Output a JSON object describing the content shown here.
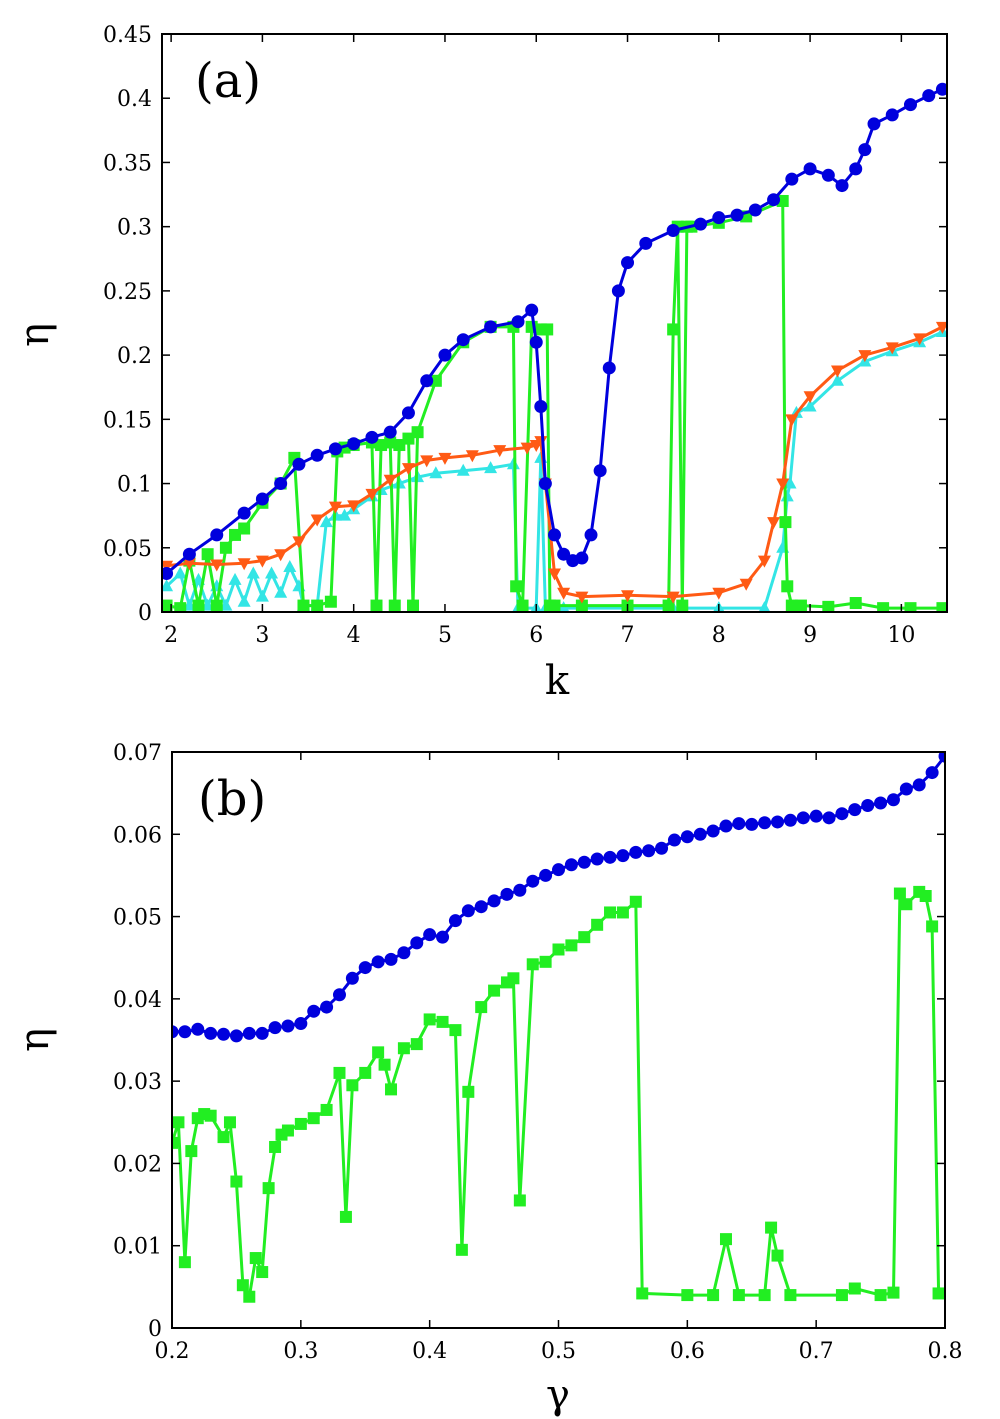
{
  "chart_data": [
    {
      "type": "line",
      "panel_label": "(a)",
      "xlabel": "k",
      "ylabel": "η",
      "xlim": [
        1.9,
        10.5
      ],
      "ylim": [
        0,
        0.45
      ],
      "xticks": [
        2,
        3,
        4,
        5,
        6,
        7,
        8,
        9,
        10
      ],
      "yticks": [
        0,
        0.05,
        0.1,
        0.15,
        0.2,
        0.25,
        0.3,
        0.35,
        0.4,
        0.45
      ],
      "ytick_labels": [
        "0",
        "0.05",
        "0.1",
        "0.15",
        "0.2",
        "0.25",
        "0.3",
        "0.35",
        "0.4",
        "0.45"
      ],
      "series": [
        {
          "name": "blue-circles",
          "color": "#0000dd",
          "marker": "circle",
          "x": [
            1.95,
            2.2,
            2.5,
            2.8,
            3.0,
            3.2,
            3.4,
            3.6,
            3.8,
            4.0,
            4.2,
            4.4,
            4.6,
            4.8,
            5.0,
            5.2,
            5.5,
            5.8,
            5.95,
            6.0,
            6.05,
            6.1,
            6.2,
            6.3,
            6.4,
            6.5,
            6.6,
            6.7,
            6.8,
            6.9,
            7.0,
            7.2,
            7.5,
            7.8,
            8.0,
            8.2,
            8.4,
            8.6,
            8.8,
            9.0,
            9.2,
            9.35,
            9.5,
            9.6,
            9.7,
            9.9,
            10.1,
            10.3,
            10.45
          ],
          "y": [
            0.03,
            0.045,
            0.06,
            0.077,
            0.088,
            0.1,
            0.115,
            0.122,
            0.127,
            0.131,
            0.136,
            0.14,
            0.155,
            0.18,
            0.2,
            0.212,
            0.222,
            0.226,
            0.235,
            0.21,
            0.16,
            0.1,
            0.06,
            0.045,
            0.04,
            0.042,
            0.06,
            0.11,
            0.19,
            0.25,
            0.272,
            0.287,
            0.297,
            0.302,
            0.307,
            0.309,
            0.313,
            0.321,
            0.337,
            0.345,
            0.34,
            0.332,
            0.345,
            0.36,
            0.38,
            0.387,
            0.395,
            0.402,
            0.407
          ]
        },
        {
          "name": "green-squares",
          "color": "#22ee22",
          "marker": "square",
          "x": [
            1.95,
            2.1,
            2.2,
            2.3,
            2.4,
            2.5,
            2.6,
            2.7,
            2.8,
            3.0,
            3.2,
            3.35,
            3.45,
            3.6,
            3.75,
            3.82,
            3.9,
            4.0,
            4.2,
            4.25,
            4.3,
            4.4,
            4.45,
            4.5,
            4.6,
            4.65,
            4.7,
            4.9,
            5.2,
            5.5,
            5.75,
            5.78,
            5.85,
            5.95,
            6.05,
            6.12,
            6.15,
            6.2,
            6.5,
            7.0,
            7.45,
            7.5,
            7.55,
            7.6,
            7.65,
            7.7,
            8.0,
            8.3,
            8.7,
            8.73,
            8.75,
            8.8,
            8.9,
            9.2,
            9.5,
            9.8,
            10.1,
            10.45
          ],
          "y": [
            0.005,
            0.003,
            0.04,
            0.005,
            0.045,
            0.005,
            0.05,
            0.06,
            0.065,
            0.085,
            0.1,
            0.12,
            0.005,
            0.005,
            0.008,
            0.125,
            0.128,
            0.13,
            0.132,
            0.005,
            0.13,
            0.132,
            0.005,
            0.13,
            0.135,
            0.005,
            0.14,
            0.18,
            0.21,
            0.222,
            0.222,
            0.02,
            0.005,
            0.222,
            0.22,
            0.22,
            0.005,
            0.005,
            0.005,
            0.005,
            0.005,
            0.22,
            0.3,
            0.005,
            0.3,
            0.3,
            0.303,
            0.308,
            0.32,
            0.07,
            0.02,
            0.005,
            0.005,
            0.004,
            0.007,
            0.003,
            0.003,
            0.003
          ]
        },
        {
          "name": "orange-triangles",
          "color": "#ff5a14",
          "marker": "triangle-down",
          "x": [
            1.95,
            2.2,
            2.5,
            2.8,
            3.0,
            3.2,
            3.4,
            3.6,
            3.8,
            4.0,
            4.2,
            4.4,
            4.6,
            4.8,
            5.0,
            5.3,
            5.6,
            5.9,
            6.0,
            6.05,
            6.1,
            6.2,
            6.3,
            6.5,
            7.0,
            7.5,
            8.0,
            8.3,
            8.5,
            8.6,
            8.7,
            8.8,
            9.0,
            9.3,
            9.6,
            9.9,
            10.2,
            10.45
          ],
          "y": [
            0.036,
            0.038,
            0.037,
            0.038,
            0.04,
            0.045,
            0.055,
            0.072,
            0.082,
            0.083,
            0.092,
            0.103,
            0.112,
            0.118,
            0.12,
            0.122,
            0.126,
            0.128,
            0.13,
            0.133,
            0.1,
            0.03,
            0.015,
            0.012,
            0.013,
            0.012,
            0.015,
            0.022,
            0.04,
            0.07,
            0.1,
            0.15,
            0.168,
            0.188,
            0.2,
            0.206,
            0.213,
            0.222
          ]
        },
        {
          "name": "cyan-triangles",
          "color": "#33e5e5",
          "marker": "triangle-up",
          "x": [
            1.95,
            2.1,
            2.2,
            2.3,
            2.4,
            2.5,
            2.6,
            2.7,
            2.8,
            2.9,
            3.0,
            3.1,
            3.2,
            3.3,
            3.4,
            3.45,
            3.6,
            3.7,
            3.8,
            3.9,
            4.0,
            4.2,
            4.3,
            4.5,
            4.7,
            4.9,
            5.2,
            5.5,
            5.75,
            5.8,
            5.85,
            6.0,
            6.05,
            6.1,
            6.15,
            6.3,
            7.0,
            7.5,
            8.0,
            8.5,
            8.7,
            8.75,
            8.78,
            8.85,
            9.0,
            9.3,
            9.6,
            9.9,
            10.2,
            10.45
          ],
          "y": [
            0.02,
            0.03,
            0.005,
            0.025,
            0.005,
            0.02,
            0.005,
            0.025,
            0.008,
            0.03,
            0.012,
            0.03,
            0.015,
            0.035,
            0.02,
            0.005,
            0.005,
            0.07,
            0.075,
            0.075,
            0.08,
            0.09,
            0.095,
            0.1,
            0.105,
            0.108,
            0.11,
            0.112,
            0.115,
            0.003,
            0.003,
            0.003,
            0.12,
            0.003,
            0.003,
            0.003,
            0.003,
            0.003,
            0.003,
            0.003,
            0.05,
            0.09,
            0.1,
            0.155,
            0.16,
            0.18,
            0.195,
            0.203,
            0.21,
            0.218
          ]
        }
      ]
    },
    {
      "type": "line",
      "panel_label": "(b)",
      "xlabel": "γ",
      "ylabel": "η",
      "xlim": [
        0.2,
        0.8
      ],
      "ylim": [
        0,
        0.07
      ],
      "xticks": [
        0.2,
        0.3,
        0.4,
        0.5,
        0.6,
        0.7,
        0.8
      ],
      "yticks": [
        0,
        0.01,
        0.02,
        0.03,
        0.04,
        0.05,
        0.06,
        0.07
      ],
      "ytick_labels": [
        "0",
        "0.01",
        "0.02",
        "0.03",
        "0.04",
        "0.05",
        "0.06",
        "0.07"
      ],
      "series": [
        {
          "name": "blue-circles",
          "color": "#0000dd",
          "marker": "circle",
          "x": [
            0.2,
            0.21,
            0.22,
            0.23,
            0.24,
            0.25,
            0.26,
            0.27,
            0.28,
            0.29,
            0.3,
            0.31,
            0.32,
            0.33,
            0.34,
            0.35,
            0.36,
            0.37,
            0.38,
            0.39,
            0.4,
            0.41,
            0.42,
            0.43,
            0.44,
            0.45,
            0.46,
            0.47,
            0.48,
            0.49,
            0.5,
            0.51,
            0.52,
            0.53,
            0.54,
            0.55,
            0.56,
            0.57,
            0.58,
            0.59,
            0.6,
            0.61,
            0.62,
            0.63,
            0.64,
            0.65,
            0.66,
            0.67,
            0.68,
            0.69,
            0.7,
            0.71,
            0.72,
            0.73,
            0.74,
            0.75,
            0.76,
            0.77,
            0.78,
            0.79,
            0.8
          ],
          "y": [
            0.036,
            0.036,
            0.0363,
            0.0358,
            0.0357,
            0.0355,
            0.0358,
            0.0358,
            0.0365,
            0.0367,
            0.037,
            0.0385,
            0.039,
            0.0405,
            0.0425,
            0.0438,
            0.0445,
            0.0448,
            0.0456,
            0.0468,
            0.0478,
            0.0475,
            0.0495,
            0.0507,
            0.0512,
            0.0519,
            0.0527,
            0.0532,
            0.0543,
            0.055,
            0.0557,
            0.0563,
            0.0566,
            0.057,
            0.0572,
            0.0574,
            0.0578,
            0.058,
            0.0583,
            0.0593,
            0.0597,
            0.06,
            0.0604,
            0.061,
            0.0613,
            0.0612,
            0.0614,
            0.0615,
            0.0617,
            0.062,
            0.0622,
            0.062,
            0.0625,
            0.063,
            0.0635,
            0.0638,
            0.0642,
            0.0655,
            0.066,
            0.0675,
            0.0695
          ]
        },
        {
          "name": "green-squares",
          "color": "#22ee22",
          "marker": "square",
          "x": [
            0.2,
            0.205,
            0.21,
            0.215,
            0.22,
            0.225,
            0.23,
            0.24,
            0.245,
            0.25,
            0.255,
            0.26,
            0.265,
            0.27,
            0.275,
            0.28,
            0.285,
            0.29,
            0.3,
            0.31,
            0.32,
            0.33,
            0.335,
            0.34,
            0.35,
            0.36,
            0.365,
            0.37,
            0.38,
            0.39,
            0.4,
            0.41,
            0.42,
            0.425,
            0.43,
            0.44,
            0.45,
            0.46,
            0.465,
            0.47,
            0.48,
            0.49,
            0.5,
            0.51,
            0.52,
            0.53,
            0.54,
            0.55,
            0.56,
            0.565,
            0.6,
            0.62,
            0.63,
            0.64,
            0.66,
            0.665,
            0.67,
            0.68,
            0.72,
            0.73,
            0.75,
            0.76,
            0.765,
            0.77,
            0.78,
            0.785,
            0.79,
            0.795
          ],
          "y": [
            0.0225,
            0.025,
            0.008,
            0.0215,
            0.0255,
            0.026,
            0.0258,
            0.0232,
            0.025,
            0.0178,
            0.0052,
            0.0038,
            0.0085,
            0.0068,
            0.017,
            0.022,
            0.0235,
            0.024,
            0.0248,
            0.0255,
            0.0265,
            0.031,
            0.0135,
            0.0295,
            0.031,
            0.0335,
            0.032,
            0.029,
            0.034,
            0.0345,
            0.0375,
            0.0372,
            0.0362,
            0.0095,
            0.0287,
            0.039,
            0.041,
            0.042,
            0.0425,
            0.0155,
            0.0442,
            0.0445,
            0.046,
            0.0465,
            0.0475,
            0.049,
            0.0505,
            0.0505,
            0.0518,
            0.0042,
            0.004,
            0.004,
            0.0108,
            0.004,
            0.004,
            0.0122,
            0.0088,
            0.004,
            0.004,
            0.0048,
            0.004,
            0.0043,
            0.0528,
            0.0515,
            0.053,
            0.0525,
            0.0488,
            0.0042
          ]
        }
      ]
    }
  ]
}
